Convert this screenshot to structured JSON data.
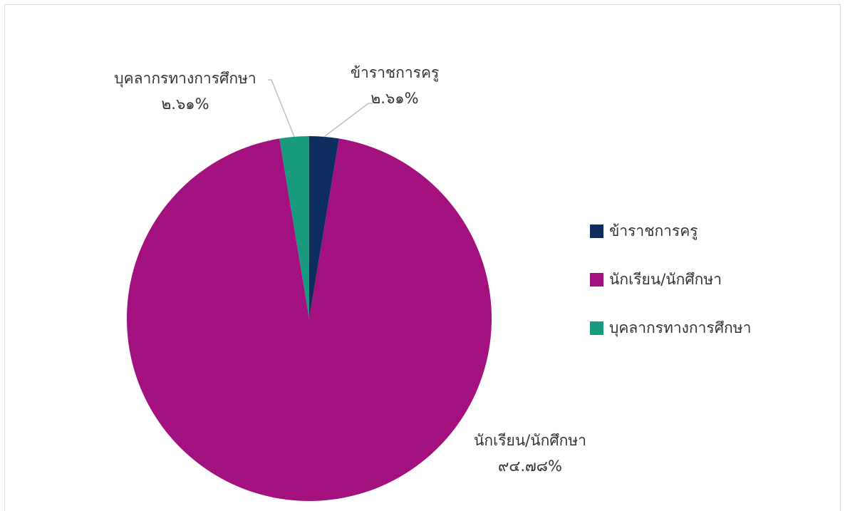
{
  "chart_data": {
    "type": "pie",
    "title": "",
    "series": [
      {
        "name": "ข้าราชการครู",
        "value": 2.61,
        "label": "๒.๖๑%",
        "color": "#0d2d5e"
      },
      {
        "name": "นักเรียน/นักศึกษา",
        "value": 94.78,
        "label": "๙๔.๗๘%",
        "color": "#a3117e"
      },
      {
        "name": "บุคลากรทางการศึกษา",
        "value": 2.61,
        "label": "๒.๖๑%",
        "color": "#189a7e"
      }
    ],
    "legend_position": "right",
    "label_line_color": "#bfbfbf"
  }
}
